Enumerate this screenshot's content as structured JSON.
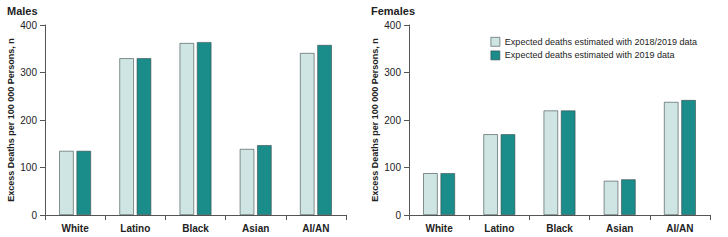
{
  "chart_data": [
    {
      "type": "bar",
      "title": "Males",
      "y_label": "Excess Deaths per 100 000 Persons, n",
      "categories": [
        "White",
        "Latino",
        "Black",
        "Asian",
        "AI/AN"
      ],
      "series": [
        {
          "name": "Expected deaths estimated with 2018/2019 data",
          "color": "#cfe5e3",
          "values": [
            135,
            330,
            362,
            139,
            341
          ]
        },
        {
          "name": "Expected deaths estimated with 2019 data",
          "color": "#1a8d8b",
          "values": [
            135,
            330,
            364,
            147,
            358
          ]
        }
      ],
      "ylim": [
        0,
        400
      ],
      "yticks": [
        0,
        100,
        200,
        300,
        400
      ],
      "grid": false
    },
    {
      "type": "bar",
      "title": "Females",
      "y_label": "Excess Deaths per 100 000 Persons, n",
      "categories": [
        "White",
        "Latino",
        "Black",
        "Asian",
        "AI/AN"
      ],
      "series": [
        {
          "name": "Expected deaths estimated with 2018/2019 data",
          "color": "#cfe5e3",
          "values": [
            88,
            170,
            220,
            72,
            238
          ]
        },
        {
          "name": "Expected deaths estimated with 2019 data",
          "color": "#1a8d8b",
          "values": [
            88,
            170,
            220,
            75,
            242
          ]
        }
      ],
      "ylim": [
        0,
        400
      ],
      "yticks": [
        0,
        100,
        200,
        300,
        400
      ],
      "grid": false,
      "legend": "upper right"
    }
  ]
}
